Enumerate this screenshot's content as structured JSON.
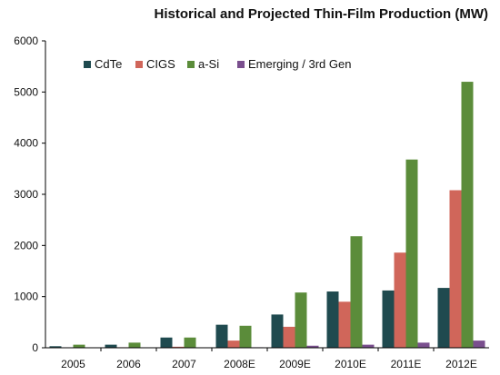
{
  "chart_data": {
    "type": "bar",
    "title": "Historical and Projected Thin-Film Production (MW)",
    "xlabel": "",
    "ylabel": "",
    "categories": [
      "2005",
      "2006",
      "2007",
      "2008E",
      "2009E",
      "2010E",
      "2011E",
      "2012E"
    ],
    "ylim": [
      0,
      6000
    ],
    "yticks": [
      0,
      1000,
      2000,
      3000,
      4000,
      5000,
      6000
    ],
    "grid": false,
    "legend": "top-left",
    "series": [
      {
        "name": "CdTe",
        "color": "#1f4a4f",
        "values": [
          30,
          60,
          200,
          450,
          650,
          1100,
          1120,
          1170
        ]
      },
      {
        "name": "CIGS",
        "color": "#d0665a",
        "values": [
          5,
          10,
          20,
          140,
          410,
          900,
          1860,
          3080
        ]
      },
      {
        "name": "a-Si",
        "color": "#5b8c3a",
        "values": [
          60,
          100,
          200,
          430,
          1080,
          2180,
          3680,
          5200
        ]
      },
      {
        "name": "Emerging / 3rd Gen",
        "color": "#7a4f8e",
        "values": [
          0,
          0,
          0,
          10,
          40,
          60,
          100,
          140
        ]
      }
    ]
  }
}
